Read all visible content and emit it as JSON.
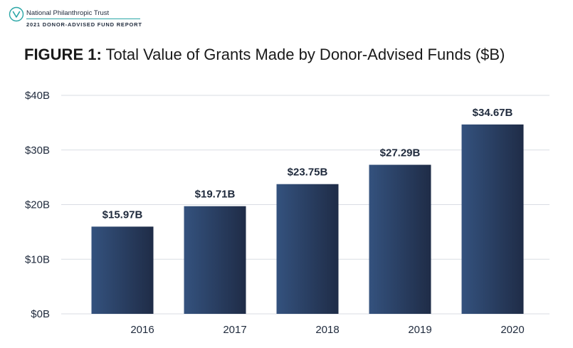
{
  "header": {
    "org_name": "National Philanthropic Trust",
    "report_name": "2021 DONOR-ADVISED FUND REPORT",
    "logo_icon": "ribbon-v-icon"
  },
  "figure": {
    "label": "FIGURE 1:",
    "title": "Total Value of Grants Made by Donor-Advised Funds ($B)"
  },
  "chart_data": {
    "type": "bar",
    "categories": [
      "2016",
      "2017",
      "2018",
      "2019",
      "2020"
    ],
    "values": [
      15.97,
      19.71,
      23.75,
      27.29,
      34.67
    ],
    "data_labels": [
      "$15.97B",
      "$19.71B",
      "$23.75B",
      "$27.29B",
      "$34.67B"
    ],
    "yticks": [
      0,
      10,
      20,
      30,
      40
    ],
    "ytick_labels": [
      "$0B",
      "$10B",
      "$20B",
      "$30B",
      "$40B"
    ],
    "ylim": [
      0,
      40
    ],
    "grid": true,
    "legend": "none",
    "title": "Total Value of Grants Made by Donor-Advised Funds ($B)",
    "xlabel": "",
    "ylabel": "",
    "colors": {
      "bar_light": "#34527e",
      "bar_dark": "#1f2c47",
      "grid": "#d9dde3",
      "text": "#1f2a3c"
    }
  }
}
